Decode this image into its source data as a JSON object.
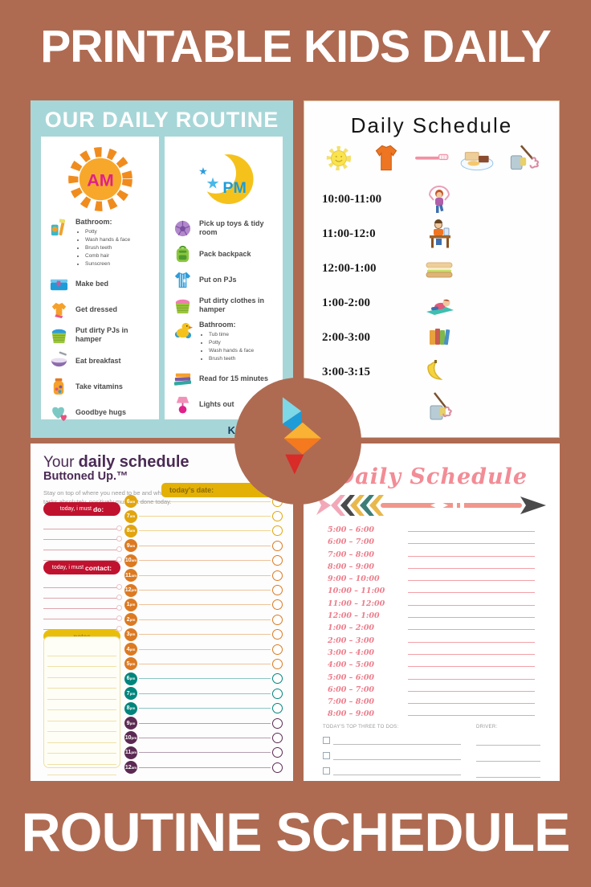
{
  "page": {
    "title_top": "PRINTABLE KIDS DAILY",
    "title_bottom": "ROUTINE SCHEDULE",
    "background_color": "#AE6B52"
  },
  "routine_panel": {
    "title": "OUR DAILY ROUTINE",
    "brand": "KID",
    "panel_color": "#A7D6D8",
    "am": {
      "label": "AM",
      "star": "★",
      "items": [
        {
          "icon": "toothbrush",
          "label": "Bathroom:",
          "bullets": [
            "Potty",
            "Wash hands & face",
            "Brush teeth",
            "Comb hair",
            "Sunscreen"
          ]
        },
        {
          "icon": "bed",
          "label": "Make bed"
        },
        {
          "icon": "shirt",
          "label": "Get dressed"
        },
        {
          "icon": "hamper-blue",
          "label": "Put dirty PJs in hamper"
        },
        {
          "icon": "bowl",
          "label": "Eat breakfast"
        },
        {
          "icon": "vitamins",
          "label": "Take vitamins"
        },
        {
          "icon": "hearts",
          "label": "Goodbye hugs"
        }
      ]
    },
    "pm": {
      "label": "PM",
      "star": "★",
      "items": [
        {
          "icon": "ball",
          "label": "Pick up toys & tidy room"
        },
        {
          "icon": "backpack",
          "label": "Pack backpack"
        },
        {
          "icon": "pjs",
          "label": "Put on PJs"
        },
        {
          "icon": "hamper-pink",
          "label": "Put dirty clothes in hamper"
        },
        {
          "icon": "duck",
          "label": "Bathroom:",
          "bullets": [
            "Tub time",
            "Potty",
            "Wash hands & face",
            "Brush teeth"
          ]
        },
        {
          "icon": "books",
          "label": "Read for 15 minutes"
        },
        {
          "icon": "lamp",
          "label": "Lights out"
        }
      ]
    }
  },
  "kids_schedule_panel": {
    "title": "Daily Schedule",
    "header_icons": [
      "sun",
      "tshirt",
      "toothbrush-flat",
      "breakfast",
      "cleaning"
    ],
    "rows": [
      {
        "time": "10:00-11:00",
        "icon": "jumprope"
      },
      {
        "time": "11:00-12:0",
        "icon": "desk"
      },
      {
        "time": "12:00-1:00",
        "icon": "sandwich"
      },
      {
        "time": "1:00-2:00",
        "icon": "nap"
      },
      {
        "time": "2:00-3:00",
        "icon": "books-stack"
      },
      {
        "time": "3:00-3:15",
        "icon": "banana"
      },
      {
        "time": ":15",
        "icon": "mop"
      }
    ]
  },
  "buttonedup_panel": {
    "title_prefix": "Your",
    "title_bold": "daily schedule",
    "brand_line": "Buttoned Up.™",
    "description_line1": "Stay on top of where you need to be and which",
    "description_line2": "tasks absolutely, positively must get done today.",
    "date_label": "today's date:",
    "sections": {
      "do_prefix": "today, i must",
      "do_word": "do:",
      "contact_prefix": "today, i must",
      "contact_word": "contact:",
      "notes_label": "notes"
    },
    "do_lines": 4,
    "contact_lines": 5,
    "note_lines": 12,
    "times": [
      {
        "t": "6",
        "s": "am",
        "c": "#E2A50E"
      },
      {
        "t": "7",
        "s": "am",
        "c": "#E2A50E"
      },
      {
        "t": "8",
        "s": "am",
        "c": "#E2A50E"
      },
      {
        "t": "9",
        "s": "am",
        "c": "#DC7A22"
      },
      {
        "t": "10",
        "s": "am",
        "c": "#DC7A22"
      },
      {
        "t": "11",
        "s": "am",
        "c": "#DC7A22"
      },
      {
        "t": "12",
        "s": "pm",
        "c": "#DC7A22"
      },
      {
        "t": "1",
        "s": "pm",
        "c": "#DC7A22"
      },
      {
        "t": "2",
        "s": "pm",
        "c": "#DC7A22"
      },
      {
        "t": "3",
        "s": "pm",
        "c": "#DC7A22"
      },
      {
        "t": "4",
        "s": "pm",
        "c": "#DC7A22"
      },
      {
        "t": "5",
        "s": "pm",
        "c": "#DC7A22"
      },
      {
        "t": "6",
        "s": "pm",
        "c": "#00857C"
      },
      {
        "t": "7",
        "s": "pm",
        "c": "#00857C"
      },
      {
        "t": "8",
        "s": "pm",
        "c": "#00857C"
      },
      {
        "t": "9",
        "s": "pm",
        "c": "#5B2A52"
      },
      {
        "t": "10",
        "s": "pm",
        "c": "#5B2A52"
      },
      {
        "t": "11",
        "s": "pm",
        "c": "#5B2A52"
      },
      {
        "t": "12",
        "s": "am",
        "c": "#5B2A52"
      }
    ]
  },
  "pink_schedule_panel": {
    "title": "Daily Schedule",
    "accent_color": "#F28C96",
    "times": [
      "5:00 – 6:00",
      "6:00 – 7:00",
      "7:00 – 8:00",
      "8:00 – 9:00",
      "9:00 – 10:00",
      "10:00 – 11:00",
      "11:00 – 12:00",
      "12:00 – 1:00",
      "1:00 – 2:00",
      "2:00 – 3:00",
      "3:00 – 4:00",
      "4:00 – 5:00",
      "5:00 – 6:00",
      "6:00 – 7:00",
      "7:00 – 8:00",
      "8:00 – 9:00"
    ],
    "todos_label": "TODAY'S TOP THREE TO DOS:",
    "todo_rows": 3,
    "driver_label": "DRIVER:",
    "driver_rows": 3
  }
}
